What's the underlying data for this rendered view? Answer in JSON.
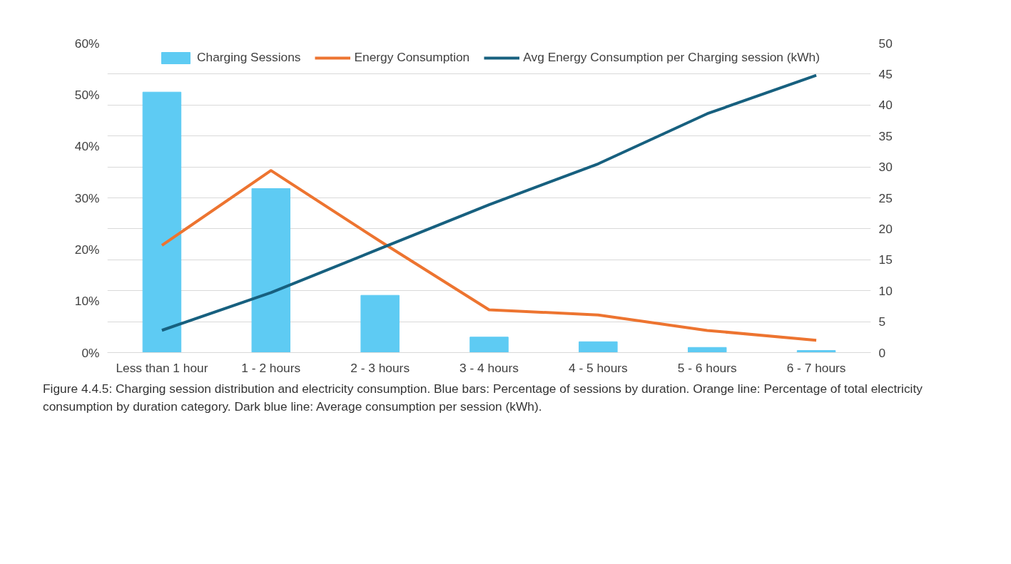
{
  "chart_data": {
    "type": "bar",
    "categories": [
      "Less than 1 hour",
      "1 - 2 hours",
      "2 - 3 hours",
      "3 - 4 hours",
      "4 - 5 hours",
      "5 - 6 hours",
      "6 - 7 hours"
    ],
    "series": [
      {
        "name": "Charging Sessions",
        "color": "#5ecbf3",
        "values": [
          50.5,
          31.8,
          11.1,
          3.0,
          2.1,
          1.0,
          0.4
        ]
      },
      {
        "name": "Energy Consumption",
        "type": "line",
        "color": "#ed7430",
        "values": [
          20.8,
          35.3,
          21.6,
          8.3,
          7.3,
          4.3,
          2.4
        ]
      },
      {
        "name": "Avg Energy Consumption per Charging session (kWh)",
        "type": "line",
        "axis": "y2",
        "color": "#17607f",
        "values": [
          3.6,
          9.7,
          16.8,
          23.9,
          30.5,
          38.6,
          44.8
        ]
      }
    ],
    "ylim": [
      0,
      60
    ],
    "yticks": [
      {
        "value": 0,
        "label": "0%"
      },
      {
        "value": 10,
        "label": "10%"
      },
      {
        "value": 20,
        "label": "20%"
      },
      {
        "value": 30,
        "label": "30%"
      },
      {
        "value": 40,
        "label": "40%"
      },
      {
        "value": 50,
        "label": "50%"
      },
      {
        "value": 60,
        "label": "60%"
      }
    ],
    "y2lim": [
      0,
      50
    ],
    "y2ticks": [
      0,
      5,
      10,
      15,
      20,
      25,
      30,
      35,
      40,
      45,
      50
    ],
    "grid": "y",
    "legend": "top",
    "annotations": [
      "Figure 4.4.5:  Charging session distribution and electricity consumption. Blue bars: Percentage of sessions by duration. Orange line: Percentage of total electricity consumption by duration category. Dark blue line: Average consumption per session (kWh)."
    ]
  }
}
